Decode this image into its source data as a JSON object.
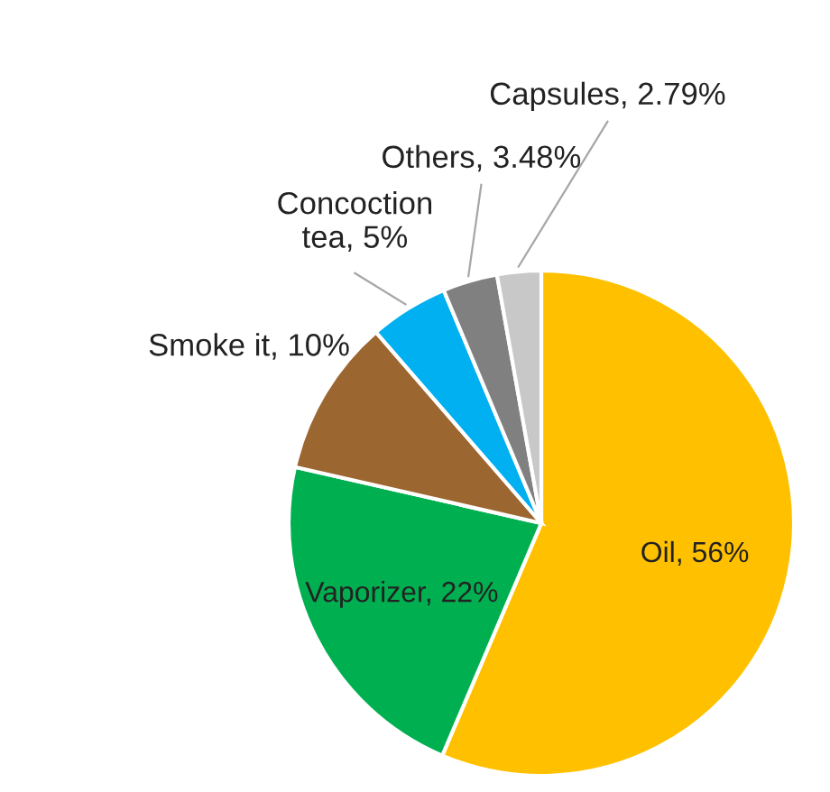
{
  "chart_data": {
    "type": "pie",
    "categories": [
      "Oil",
      "Vaporizer",
      "Smoke it",
      "Concoction tea",
      "Others",
      "Capsules"
    ],
    "values": [
      56,
      22,
      10,
      5,
      3.48,
      2.79
    ],
    "colors": [
      "#ffc000",
      "#00b050",
      "#9c6630",
      "#00b0f0",
      "#808080",
      "#c8c8c8"
    ],
    "value_labels": [
      "56%",
      "22%",
      "10%",
      "5%",
      "3.48%",
      "2.79%"
    ]
  }
}
